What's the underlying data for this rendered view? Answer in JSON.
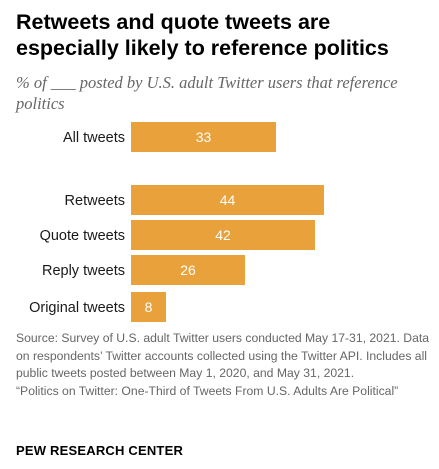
{
  "chart_data": {
    "type": "bar",
    "orientation": "horizontal",
    "title": "Retweets and quote tweets are especially likely to reference politics",
    "subtitle": "% of ___ posted by U.S. adult Twitter users that reference politics",
    "categories": [
      "All tweets",
      "Retweets",
      "Quote tweets",
      "Reply tweets",
      "Original tweets"
    ],
    "values": [
      33,
      44,
      42,
      26,
      8
    ],
    "xlim": [
      0,
      44
    ],
    "grid": false,
    "legend": "none",
    "bar_color": "#e9a23b",
    "label_color": "#ffffff"
  },
  "notes": {
    "source": "Source: Survey of U.S. adult Twitter users conducted May 17-31, 2021. Data on respondents’ Twitter accounts collected using the Twitter API. Includes all public tweets posted between May 1, 2020, and May 31, 2021.",
    "report": "“Politics on Twitter: One-Third of Tweets From U.S. Adults Are Political”"
  },
  "brand": "PEW RESEARCH CENTER"
}
